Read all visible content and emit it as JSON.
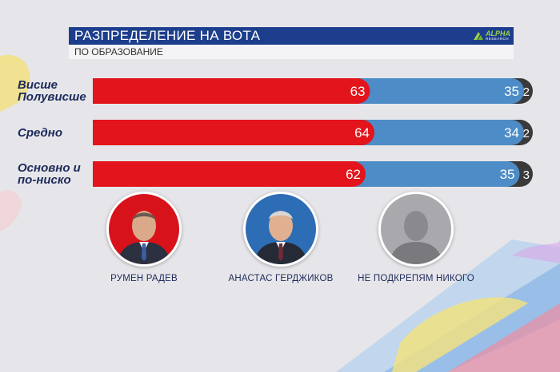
{
  "header": {
    "title": "РАЗПРЕДЕЛЕНИЕ НА ВОТА",
    "subtitle": "ПО ОБРАЗОВАНИЕ",
    "logo_word": "ALPHA",
    "logo_sub": "RESEARCH"
  },
  "chart_data": {
    "type": "bar",
    "orientation": "horizontal",
    "stacked": true,
    "categories": [
      "Висше Полувисше",
      "Средно",
      "Основно и по-ниско"
    ],
    "category_lines": [
      [
        "Висше",
        "Полувисше"
      ],
      [
        "Средно"
      ],
      [
        "Основно и",
        "по-ниско"
      ]
    ],
    "series": [
      {
        "name": "РУМЕН РАДЕВ",
        "color": "#e3141b",
        "values": [
          63,
          64,
          62
        ]
      },
      {
        "name": "АНАСТАС ГЕРДЖИКОВ",
        "color": "#4d8cc6",
        "values": [
          35,
          34,
          35
        ]
      },
      {
        "name": "НЕ ПОДКРЕПЯМ НИКОГО",
        "color": "#3a3a3a",
        "values": [
          2,
          2,
          3
        ]
      }
    ],
    "xlim": [
      0,
      100
    ]
  },
  "candidates": [
    {
      "name": "РУМЕН РАДЕВ",
      "bg": "#d8121a",
      "suit": "#2b3140",
      "tie": "#3d5fa8"
    },
    {
      "name": "АНАСТАС ГЕРДЖИКОВ",
      "bg": "#2d6db5",
      "suit": "#262a36",
      "tie": "#6f2a3a"
    },
    {
      "name": "НЕ ПОДКРЕПЯМ НИКОГО",
      "bg": "#a9a9ad",
      "suit": "#7a7a7e",
      "tie": "#7a7a7e"
    }
  ]
}
